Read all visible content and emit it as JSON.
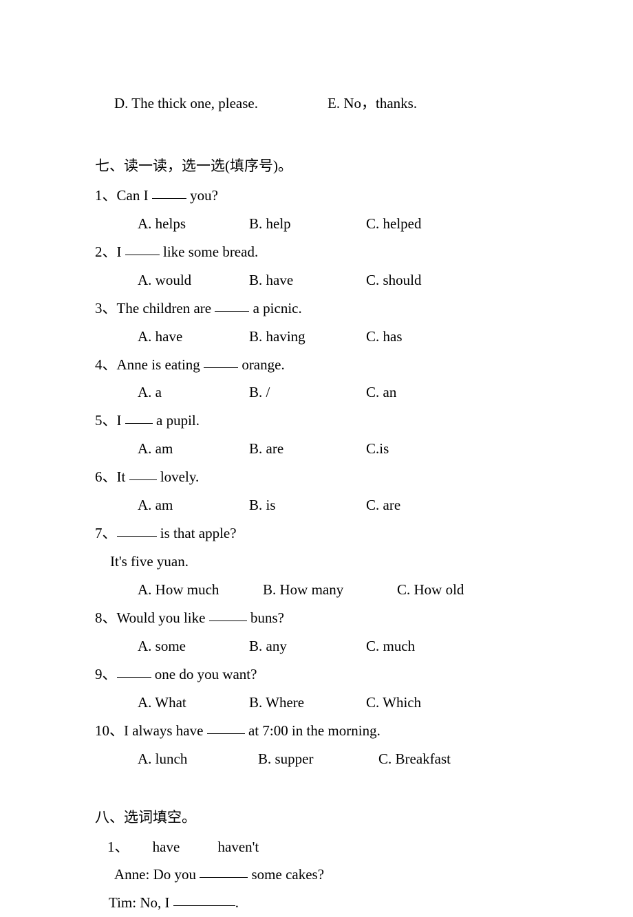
{
  "top_options": {
    "d": "D. The thick one, please.",
    "e": "E. No，thanks."
  },
  "section7": {
    "heading": "七、读一读，选一选(填序号)。",
    "questions": [
      {
        "num": "1、",
        "pre": "Can I ",
        "post": " you?",
        "blank_class": "blank-50",
        "opts": {
          "a": "A. helps",
          "b": "B. help",
          "c": "C. helped"
        },
        "row_class": ""
      },
      {
        "num": "2、",
        "pre": "I ",
        "post": " like some bread.",
        "blank_class": "blank-50",
        "opts": {
          "a": "A. would",
          "b": "B. have",
          "c": "C. should"
        },
        "row_class": ""
      },
      {
        "num": "3、",
        "pre": "The children are ",
        "post": " a picnic.",
        "blank_class": "blank-50",
        "opts": {
          "a": "A. have",
          "b": "B. having",
          "c": "C. has"
        },
        "row_class": ""
      },
      {
        "num": "4、",
        "pre": "Anne is eating ",
        "post": " orange.",
        "blank_class": "blank-50",
        "opts": {
          "a": "A. a",
          "b": "B. /",
          "c": "C. an"
        },
        "row_class": ""
      },
      {
        "num": "5、",
        "pre": "I ",
        "post": " a pupil.",
        "blank_class": "blank-40",
        "opts": {
          "a": "A. am",
          "b": "B. are",
          "c": "C.is"
        },
        "row_class": ""
      },
      {
        "num": "6、",
        "pre": "It ",
        "post": " lovely.",
        "blank_class": "blank-40",
        "opts": {
          "a": "A. am",
          "b": "B. is",
          "c": "C. are"
        },
        "row_class": ""
      },
      {
        "num": "7、",
        "pre": "",
        "post": " is that apple?",
        "blank_class": "blank-58",
        "followup": "It's five yuan.",
        "opts": {
          "a": "A. How much",
          "b": "B. How many",
          "c": "C. How old"
        },
        "row_class": "row-7"
      },
      {
        "num": "8、",
        "pre": "Would you like ",
        "post": " buns?",
        "blank_class": "blank-55",
        "opts": {
          "a": "A. some",
          "b": "B. any",
          "c": "C. much"
        },
        "row_class": ""
      },
      {
        "num": "9、",
        "pre": "",
        "post": " one do you want?",
        "blank_class": "blank-50",
        "opts": {
          "a": "A. What",
          "b": "B. Where",
          "c": "C. Which"
        },
        "row_class": ""
      },
      {
        "num": "10、",
        "pre": "I always have ",
        "post": " at 7:00 in the morning.",
        "blank_class": "blank-55",
        "opts": {
          "a": "A.   lunch",
          "b": "B.   supper",
          "c": "C.   Breakfast"
        },
        "row_class": "row-10"
      }
    ]
  },
  "section8": {
    "heading": "八、选词填空。",
    "q1": {
      "num": "1、",
      "word1": "have",
      "word2": "haven't",
      "line1_pre": "Anne: Do you ",
      "line1_post": " some cakes?",
      "line1_blank": "blank-70",
      "line2_pre": "Tim: No, I ",
      "line2_post": ".",
      "line2_blank": "blank-90"
    }
  }
}
